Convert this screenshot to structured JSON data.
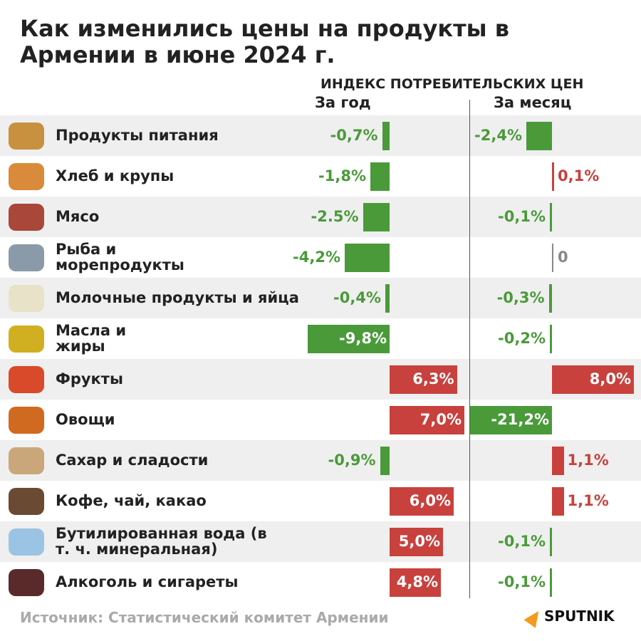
{
  "title": "Как изменились цены на продукты в Армении в июне 2024 г.",
  "chart_data": {
    "type": "bar",
    "title": "Как изменились цены на продукты в Армении в июне 2024 г.",
    "header": "ИНДЕКС ПОТРЕБИТЕЛЬСКИХ ЦЕН",
    "categories": [
      "Продукты питания",
      "Хлеб и крупы",
      "Мясо",
      "Рыба и морепродукты",
      "Молочные продукты и яйца",
      "Масла и жиры",
      "Фрукты",
      "Овощи",
      "Сахар и сладости",
      "Кофе, чай, какао",
      "Бутилированная вода (в т. ч. минеральная)",
      "Алкоголь и сигареты"
    ],
    "series": [
      {
        "name": "За год",
        "values": [
          -0.7,
          -1.8,
          -2.5,
          -4.2,
          -0.4,
          -9.8,
          6.3,
          7.0,
          -0.9,
          6.0,
          5.0,
          4.8
        ],
        "labels": [
          "-0,7%",
          "-1,8%",
          "-2.5%",
          "-4,2%",
          "-0,4%",
          "-9,8%",
          "6,3%",
          "7,0%",
          "-0,9%",
          "6,0%",
          "5,0%",
          "4,8%"
        ]
      },
      {
        "name": "За месяц",
        "values": [
          -2.4,
          0.1,
          -0.1,
          0,
          -0.3,
          -0.2,
          8.0,
          -21.2,
          1.1,
          1.1,
          -0.1,
          -0.1
        ],
        "labels": [
          "-2,4%",
          "0,1%",
          "-0,1%",
          "0",
          "-0,3%",
          "-0,2%",
          "8,0%",
          "-21,2%",
          "1,1%",
          "1,1%",
          "-0,1%",
          "-0,1%"
        ]
      }
    ],
    "colors": {
      "negative": "#4a9a3a",
      "positive": "#c8413d",
      "zero": "#888888"
    }
  },
  "source": "Источник: Статистический комитет Армении",
  "logo": "SPUTNIK"
}
